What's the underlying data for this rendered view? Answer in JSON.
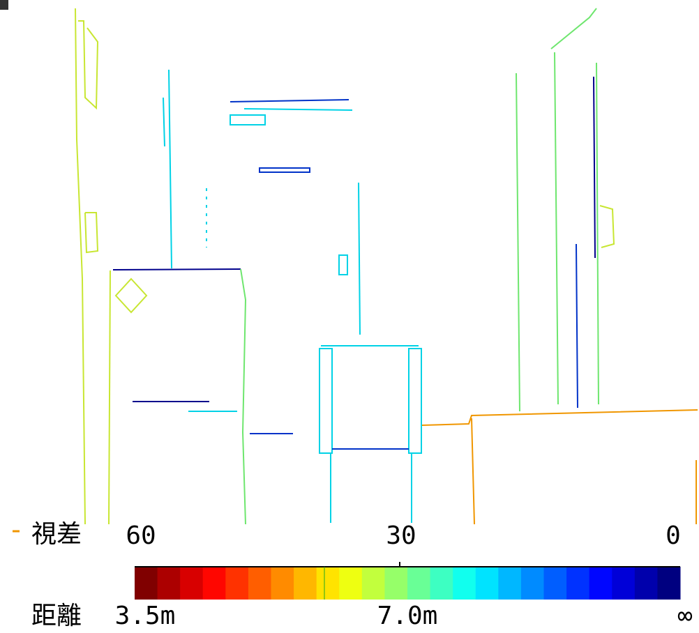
{
  "legend": {
    "disparity_label": "視差",
    "disparity_ticks": [
      "60",
      "30",
      "0"
    ],
    "distance_label": "距離",
    "distance_ticks": [
      "3.5m",
      "7.0m",
      "∞"
    ]
  }
}
